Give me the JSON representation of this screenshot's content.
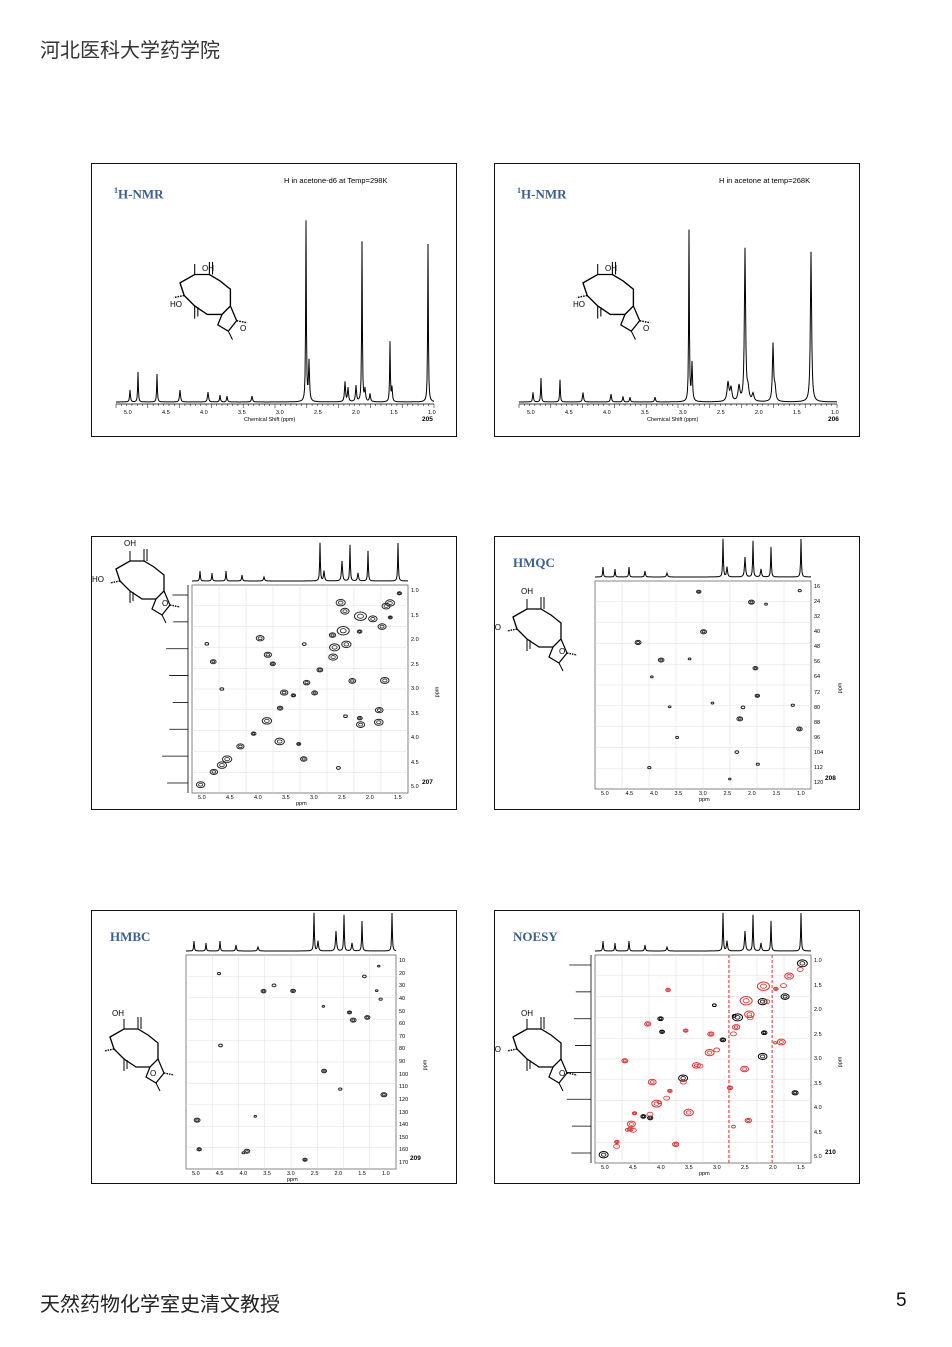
{
  "header": {
    "title": "河北医科大学药学院"
  },
  "footer": {
    "author": "天然药物化学室史清文教授",
    "page": "5"
  },
  "slides": [
    {
      "label": "1H-NMR",
      "label_sup": "1",
      "label_rest": "H-NMR",
      "condition": "H in acetone-d6 at Temp=298K",
      "number": "205",
      "axis_title": "Chemical Shift (ppm)",
      "ticks": [
        "5.0",
        "4.5",
        "4.0",
        "3.5",
        "3.0",
        "2.5",
        "2.0",
        "1.5",
        "1.0"
      ]
    },
    {
      "label": "1H-NMR",
      "label_sup": "1",
      "label_rest": "H-NMR",
      "condition": "H in acetone at temp=268K",
      "number": "206",
      "axis_title": "Chemical Shift (ppm)",
      "ticks": [
        "5.0",
        "4.5",
        "4.0",
        "3.5",
        "3.0",
        "2.5",
        "2.0",
        "1.5",
        "1.0"
      ]
    },
    {
      "label": "",
      "number": "207",
      "axis_title": "ppm",
      "y_title": "ppm",
      "ticks": [
        "5.0",
        "4.5",
        "4.0",
        "3.5",
        "3.0",
        "2.5",
        "2.0",
        "1.5"
      ],
      "yticks": [
        "1.0",
        "1.5",
        "2.0",
        "2.5",
        "3.0",
        "3.5",
        "4.0",
        "4.5",
        "5.0"
      ]
    },
    {
      "label": "HMQC",
      "number": "208",
      "axis_title": "ppm",
      "y_title": "ppm",
      "ticks": [
        "5.0",
        "4.5",
        "4.0",
        "3.5",
        "3.0",
        "2.5",
        "2.0",
        "1.5",
        "1.0"
      ],
      "yticks": [
        "16",
        "24",
        "32",
        "40",
        "48",
        "56",
        "64",
        "72",
        "80",
        "88",
        "96",
        "104",
        "112",
        "120"
      ]
    },
    {
      "label": "HMBC",
      "number": "209",
      "axis_title": "ppm",
      "y_title": "ppm",
      "ticks": [
        "5.0",
        "4.5",
        "4.0",
        "3.5",
        "3.0",
        "2.5",
        "2.0",
        "1.5",
        "1.0"
      ],
      "yticks": [
        "10",
        "20",
        "30",
        "40",
        "50",
        "60",
        "70",
        "80",
        "90",
        "100",
        "110",
        "120",
        "130",
        "140",
        "150",
        "160",
        "170"
      ]
    },
    {
      "label": "NOESY",
      "number": "210",
      "axis_title": "ppm",
      "y_title": "ppm",
      "ticks": [
        "5.0",
        "4.5",
        "4.0",
        "3.5",
        "3.0",
        "2.5",
        "2.0",
        "1.5"
      ],
      "yticks": [
        "1.0",
        "1.5",
        "2.0",
        "2.5",
        "3.0",
        "3.5",
        "4.0",
        "4.5",
        "5.0"
      ]
    }
  ],
  "structure": {
    "oh": "OH",
    "ho": "HO",
    "o": "O"
  }
}
